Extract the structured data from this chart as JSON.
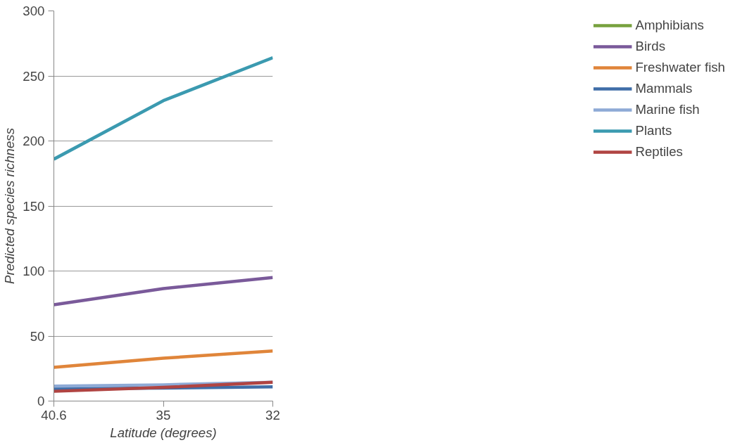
{
  "chart_data": {
    "type": "line",
    "xlabel": "Latitude (degrees)",
    "ylabel": "Predicted species richness",
    "categories": [
      "40.6",
      "35",
      "32"
    ],
    "ylim": [
      0,
      300
    ],
    "yticks": [
      0,
      50,
      100,
      150,
      200,
      250,
      300
    ],
    "grid": "y",
    "legend": "right",
    "marker": "none",
    "line_style": "solid",
    "series": [
      {
        "name": "Amphibians",
        "color": "#77a13e",
        "values": [
          null,
          null,
          null
        ]
      },
      {
        "name": "Birds",
        "color": "#7a5a9a",
        "values": [
          74,
          86.5,
          95
        ]
      },
      {
        "name": "Freshwater fish",
        "color": "#e0853a",
        "values": [
          26,
          33,
          38.5
        ]
      },
      {
        "name": "Mammals",
        "color": "#3f6ea8",
        "values": [
          9.5,
          10,
          11
        ]
      },
      {
        "name": "Marine fish",
        "color": "#8eaad6",
        "values": [
          11.5,
          12.5,
          14.5
        ]
      },
      {
        "name": "Plants",
        "color": "#3b9ab0",
        "values": [
          186,
          231,
          264
        ]
      },
      {
        "name": "Reptiles",
        "color": "#b04442",
        "values": [
          7.5,
          10.5,
          14.5
        ]
      }
    ]
  }
}
